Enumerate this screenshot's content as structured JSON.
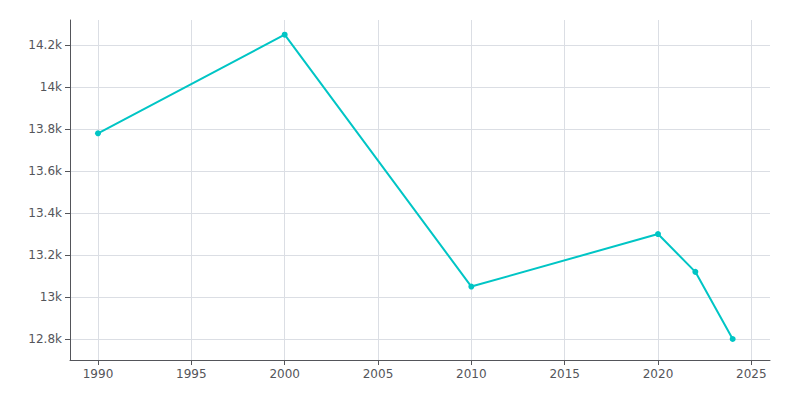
{
  "chart_data": {
    "type": "line",
    "x": [
      1990,
      2000,
      2010,
      2020,
      2022,
      2024
    ],
    "values": [
      13780,
      14250,
      13050,
      13300,
      13120,
      12800
    ],
    "color": "#00C5C5",
    "marker": "circle",
    "xlim": [
      1988.5,
      2026
    ],
    "xticks": [
      1990,
      1995,
      2000,
      2005,
      2010,
      2015,
      2020,
      2025
    ],
    "ylim": [
      12700,
      14320
    ],
    "yticks": [
      {
        "value": 12800,
        "label": "12.8k"
      },
      {
        "value": 13000,
        "label": "13k"
      },
      {
        "value": 13200,
        "label": "13.2k"
      },
      {
        "value": 13400,
        "label": "13.4k"
      },
      {
        "value": 13600,
        "label": "13.6k"
      },
      {
        "value": 13800,
        "label": "13.8k"
      },
      {
        "value": 14000,
        "label": "14k"
      },
      {
        "value": 14200,
        "label": "14.2k"
      }
    ],
    "grid": true
  }
}
